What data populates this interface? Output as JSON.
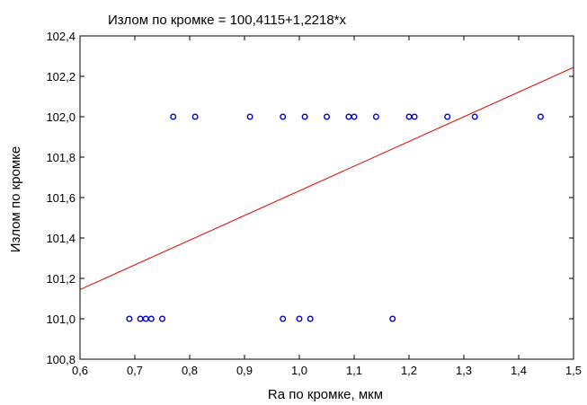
{
  "chart_data": {
    "type": "scatter",
    "title": "Излом по кромке = 100,4115+1,2218*x",
    "xlabel": "Ra по кромке, мкм",
    "ylabel": "Излом по кромке",
    "xlim": [
      0.6,
      1.5
    ],
    "ylim": [
      100.8,
      102.4
    ],
    "x_ticks": [
      0.6,
      0.7,
      0.8,
      0.9,
      1.0,
      1.1,
      1.2,
      1.3,
      1.4,
      1.5
    ],
    "x_tick_labels": [
      "0,6",
      "0,7",
      "0,8",
      "0,9",
      "1,0",
      "1,1",
      "1,2",
      "1,3",
      "1,4",
      "1,5"
    ],
    "y_ticks": [
      100.8,
      101.0,
      101.2,
      101.4,
      101.6,
      101.8,
      102.0,
      102.2,
      102.4
    ],
    "y_tick_labels": [
      "100,8",
      "101,0",
      "101,2",
      "101,4",
      "101,6",
      "101,8",
      "102,0",
      "102,2",
      "102,4"
    ],
    "grid": false,
    "points": [
      {
        "x": 0.69,
        "y": 101.0
      },
      {
        "x": 0.71,
        "y": 101.0
      },
      {
        "x": 0.72,
        "y": 101.0
      },
      {
        "x": 0.73,
        "y": 101.0
      },
      {
        "x": 0.75,
        "y": 101.0
      },
      {
        "x": 0.97,
        "y": 101.0
      },
      {
        "x": 1.0,
        "y": 101.0
      },
      {
        "x": 1.02,
        "y": 101.0
      },
      {
        "x": 1.17,
        "y": 101.0
      },
      {
        "x": 0.77,
        "y": 102.0
      },
      {
        "x": 0.81,
        "y": 102.0
      },
      {
        "x": 0.91,
        "y": 102.0
      },
      {
        "x": 0.97,
        "y": 102.0
      },
      {
        "x": 1.01,
        "y": 102.0
      },
      {
        "x": 1.05,
        "y": 102.0
      },
      {
        "x": 1.09,
        "y": 102.0
      },
      {
        "x": 1.1,
        "y": 102.0
      },
      {
        "x": 1.14,
        "y": 102.0
      },
      {
        "x": 1.2,
        "y": 102.0
      },
      {
        "x": 1.21,
        "y": 102.0
      },
      {
        "x": 1.27,
        "y": 102.0
      },
      {
        "x": 1.32,
        "y": 102.0
      },
      {
        "x": 1.44,
        "y": 102.0
      }
    ],
    "regression": {
      "intercept": 100.4115,
      "slope": 1.2218
    },
    "point_color": "#0000cc",
    "line_color": "#e00000"
  }
}
